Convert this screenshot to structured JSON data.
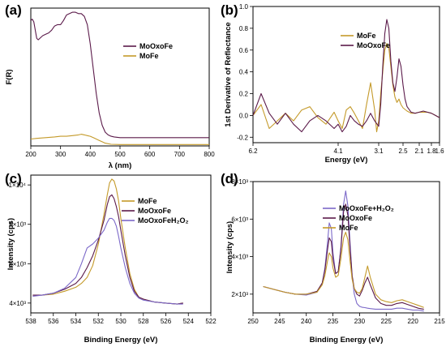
{
  "chart_data": [
    {
      "panel": "(a)",
      "type": "line",
      "xlabel": "λ (nm)",
      "ylabel": "F(R)",
      "xlim": [
        200,
        800
      ],
      "ylim": [
        0,
        1.0
      ],
      "xticks": [
        "200",
        "300",
        "400",
        "500",
        "600",
        "700",
        "800"
      ],
      "yticks": [],
      "legend_position": "right",
      "series": [
        {
          "name": "MoOxoFe",
          "color": "#5b1a4a",
          "x": [
            200,
            205,
            210,
            215,
            220,
            225,
            230,
            240,
            250,
            260,
            270,
            280,
            290,
            300,
            310,
            320,
            330,
            340,
            350,
            360,
            370,
            380,
            390,
            400,
            410,
            420,
            430,
            440,
            450,
            460,
            470,
            480,
            500,
            550,
            600,
            650,
            700,
            750,
            800
          ],
          "y": [
            0.91,
            0.92,
            0.9,
            0.84,
            0.78,
            0.77,
            0.78,
            0.8,
            0.81,
            0.82,
            0.84,
            0.87,
            0.88,
            0.88,
            0.91,
            0.95,
            0.96,
            0.97,
            0.97,
            0.96,
            0.96,
            0.94,
            0.88,
            0.74,
            0.56,
            0.38,
            0.24,
            0.15,
            0.1,
            0.08,
            0.07,
            0.065,
            0.06,
            0.06,
            0.06,
            0.06,
            0.06,
            0.06,
            0.06
          ]
        },
        {
          "name": "MoFe",
          "color": "#c49a2a",
          "x": [
            200,
            220,
            250,
            280,
            300,
            320,
            340,
            360,
            370,
            380,
            390,
            400,
            410,
            420,
            430,
            440,
            450,
            470,
            500,
            550,
            600,
            700,
            800
          ],
          "y": [
            0.05,
            0.055,
            0.06,
            0.065,
            0.07,
            0.07,
            0.075,
            0.08,
            0.085,
            0.08,
            0.075,
            0.07,
            0.06,
            0.05,
            0.04,
            0.03,
            0.02,
            0.012,
            0.01,
            0.01,
            0.01,
            0.01,
            0.01
          ]
        }
      ]
    },
    {
      "panel": "(b)",
      "type": "line",
      "xlabel": "Energy (eV)",
      "ylabel": "1st Derivative of Reflectance",
      "xlim": [
        6.2,
        1.6
      ],
      "ylim": [
        -0.25,
        1.0
      ],
      "xticks": [
        "6.2",
        "4.1",
        "3.1",
        "2.5",
        "2.1",
        "1.8",
        "1.6"
      ],
      "xtick_values": [
        6.2,
        4.1,
        3.1,
        2.5,
        2.1,
        1.8,
        1.6
      ],
      "yticks": [
        "-0.2",
        "0.0",
        "0.2",
        "0.4",
        "0.6",
        "0.8",
        "1.0"
      ],
      "ytick_values": [
        -0.2,
        0.0,
        0.2,
        0.4,
        0.6,
        0.8,
        1.0
      ],
      "legend_position": "top-right",
      "series": [
        {
          "name": "MoFe",
          "color": "#c49a2a",
          "x": [
            6.2,
            6.0,
            5.8,
            5.6,
            5.4,
            5.2,
            5.0,
            4.8,
            4.6,
            4.4,
            4.2,
            4.1,
            4.0,
            3.9,
            3.8,
            3.7,
            3.6,
            3.5,
            3.4,
            3.3,
            3.2,
            3.15,
            3.1,
            3.05,
            3.0,
            2.95,
            2.9,
            2.85,
            2.8,
            2.75,
            2.7,
            2.65,
            2.6,
            2.55,
            2.5,
            2.4,
            2.3,
            2.2,
            2.1,
            2.0,
            1.9,
            1.8,
            1.7,
            1.6
          ],
          "y": [
            0.0,
            0.1,
            -0.12,
            -0.05,
            0.02,
            -0.05,
            0.05,
            0.08,
            -0.02,
            -0.08,
            0.03,
            -0.05,
            -0.12,
            0.05,
            0.08,
            0.02,
            -0.05,
            -0.12,
            0.1,
            0.3,
            0.05,
            -0.15,
            -0.05,
            0.2,
            0.4,
            0.6,
            0.66,
            0.62,
            0.45,
            0.28,
            0.17,
            0.12,
            0.15,
            0.1,
            0.07,
            0.04,
            0.02,
            0.02,
            0.03,
            0.03,
            0.03,
            0.02,
            0.0,
            -0.02
          ]
        },
        {
          "name": "MoOxoFe",
          "color": "#5b1a4a",
          "x": [
            6.2,
            6.0,
            5.8,
            5.6,
            5.4,
            5.2,
            5.0,
            4.8,
            4.6,
            4.4,
            4.2,
            4.1,
            4.0,
            3.9,
            3.8,
            3.7,
            3.6,
            3.5,
            3.4,
            3.3,
            3.2,
            3.1,
            3.05,
            3.0,
            2.95,
            2.9,
            2.85,
            2.8,
            2.75,
            2.7,
            2.65,
            2.6,
            2.55,
            2.5,
            2.45,
            2.4,
            2.3,
            2.2,
            2.1,
            2.0,
            1.9,
            1.8,
            1.7,
            1.6
          ],
          "y": [
            0.0,
            0.2,
            0.02,
            -0.08,
            0.02,
            -0.08,
            -0.15,
            -0.05,
            0.0,
            -0.05,
            -0.12,
            -0.08,
            -0.15,
            -0.1,
            0.0,
            -0.05,
            -0.08,
            -0.1,
            -0.05,
            0.02,
            -0.05,
            -0.1,
            0.1,
            0.45,
            0.75,
            0.88,
            0.8,
            0.5,
            0.3,
            0.22,
            0.35,
            0.52,
            0.45,
            0.28,
            0.15,
            0.08,
            0.03,
            0.02,
            0.03,
            0.04,
            0.03,
            0.02,
            0.0,
            -0.02
          ]
        }
      ]
    },
    {
      "panel": "(c)",
      "type": "line",
      "xlabel": "Binding Energy (eV)",
      "ylabel": "Intensity (cps)",
      "xlim": [
        538,
        522
      ],
      "ylim": [
        3500,
        10500
      ],
      "xticks": [
        "538",
        "536",
        "534",
        "532",
        "530",
        "528",
        "526",
        "524",
        "522"
      ],
      "xtick_values": [
        538,
        536,
        534,
        532,
        530,
        528,
        526,
        524,
        522
      ],
      "yticks": [
        "4×10³",
        "6×10³",
        "8×10³",
        "1×10⁴"
      ],
      "ytick_values": [
        4000,
        6000,
        8000,
        10000
      ],
      "legend_position": "top-right",
      "series": [
        {
          "name": "MoFe",
          "color": "#c49a2a",
          "x": [
            537.8,
            537,
            536,
            535,
            534,
            533.5,
            533,
            532.5,
            532,
            531.5,
            531.2,
            531,
            530.8,
            530.6,
            530.4,
            530.2,
            530,
            529.6,
            529.2,
            528.8,
            528.4,
            528,
            527,
            526,
            525,
            524.5
          ],
          "y": [
            4400,
            4400,
            4450,
            4600,
            4800,
            5000,
            5300,
            5900,
            7000,
            8500,
            9500,
            10100,
            10300,
            10200,
            9800,
            9200,
            8300,
            6800,
            5500,
            4700,
            4300,
            4200,
            4050,
            4000,
            3950,
            4000
          ]
        },
        {
          "name": "MoOxoFe",
          "color": "#5b1a4a",
          "x": [
            537.8,
            537,
            536,
            535,
            534,
            533.5,
            533,
            532.5,
            532,
            531.5,
            531.2,
            531,
            530.8,
            530.6,
            530.4,
            530.2,
            530,
            529.6,
            529.2,
            528.8,
            528.4,
            528,
            527,
            526,
            525,
            524.5
          ],
          "y": [
            4400,
            4400,
            4500,
            4700,
            5000,
            5300,
            5800,
            6400,
            7200,
            8200,
            9000,
            9400,
            9500,
            9300,
            8900,
            8400,
            7700,
            6400,
            5300,
            4600,
            4300,
            4200,
            4050,
            4000,
            3950,
            4000
          ]
        },
        {
          "name": "MoOxoFeH₂O₂",
          "color": "#7b68c8",
          "x": [
            537.8,
            537,
            536,
            535,
            534,
            533.5,
            533,
            532.5,
            532,
            531.5,
            531.2,
            531,
            530.8,
            530.6,
            530.4,
            530.2,
            530,
            529.6,
            529.2,
            528.8,
            528.4,
            528,
            527,
            526,
            525,
            524.5
          ],
          "y": [
            4350,
            4400,
            4500,
            4750,
            5300,
            6000,
            6800,
            7000,
            7300,
            7700,
            8100,
            8300,
            8300,
            8200,
            7900,
            7400,
            6800,
            5800,
            5000,
            4500,
            4250,
            4150,
            4050,
            4000,
            3950,
            3950
          ]
        }
      ]
    },
    {
      "panel": "(d)",
      "type": "line",
      "xlabel": "Binding Energy (eV)",
      "ylabel": "Intensity (cps)",
      "xlim": [
        250,
        215
      ],
      "ylim": [
        1000,
        8000
      ],
      "xticks": [
        "250",
        "245",
        "240",
        "235",
        "230",
        "225",
        "220",
        "215"
      ],
      "xtick_values": [
        250,
        245,
        240,
        235,
        230,
        225,
        220,
        215
      ],
      "yticks": [
        "2×10³",
        "4×10³",
        "6×10³",
        "8×10³"
      ],
      "ytick_values": [
        2000,
        4000,
        6000,
        8000
      ],
      "legend_position": "top-right",
      "series": [
        {
          "name": "MoOxoFe+H₂O₂",
          "color": "#7b68c8",
          "x": [
            248,
            246,
            244,
            242,
            240,
            238,
            237,
            236.5,
            236,
            235.7,
            235.3,
            235,
            234.5,
            234,
            233.5,
            233,
            232.6,
            232.2,
            231.8,
            231.4,
            231,
            230.5,
            230,
            229.5,
            229,
            228.5,
            228,
            227,
            226,
            225,
            224,
            223,
            222,
            221,
            220,
            219,
            218
          ],
          "y": [
            2400,
            2250,
            2100,
            2000,
            1950,
            2100,
            2600,
            3400,
            4800,
            5800,
            5500,
            4200,
            3100,
            3200,
            4500,
            6800,
            7500,
            6700,
            4800,
            3000,
            2000,
            1500,
            1350,
            1300,
            1280,
            1250,
            1230,
            1200,
            1200,
            1200,
            1200,
            1250,
            1250,
            1200,
            1150,
            1150,
            1100
          ]
        },
        {
          "name": "MoOxoFe",
          "color": "#5b1a4a",
          "x": [
            248,
            246,
            244,
            242,
            240,
            238,
            237,
            236.5,
            236,
            235.7,
            235.3,
            235,
            234.5,
            234,
            233.5,
            233,
            232.6,
            232.2,
            231.8,
            231.4,
            231,
            230.5,
            230,
            229.5,
            229,
            228.5,
            228,
            227,
            226,
            225,
            224,
            223,
            222,
            221,
            220,
            219,
            218
          ],
          "y": [
            2400,
            2250,
            2100,
            2000,
            2000,
            2150,
            2600,
            3300,
            4400,
            5000,
            4800,
            3900,
            3100,
            3200,
            4400,
            6400,
            6800,
            6200,
            4500,
            3000,
            2300,
            2000,
            1900,
            2200,
            2600,
            2900,
            2500,
            1800,
            1500,
            1400,
            1400,
            1500,
            1550,
            1450,
            1350,
            1250,
            1200
          ]
        },
        {
          "name": "MoFe",
          "color": "#c49a2a",
          "x": [
            248,
            246,
            244,
            242,
            240,
            238,
            237,
            236.5,
            236,
            235.7,
            235.3,
            235,
            234.5,
            234,
            233.5,
            233,
            232.6,
            232.2,
            231.8,
            231.4,
            231,
            230.5,
            230,
            229.5,
            229,
            228.5,
            228,
            227,
            226,
            225,
            224,
            223,
            222,
            221,
            220,
            219,
            218
          ],
          "y": [
            2400,
            2250,
            2100,
            2000,
            2000,
            2100,
            2500,
            3000,
            3800,
            4200,
            4000,
            3400,
            2900,
            3000,
            3900,
            5000,
            5300,
            4900,
            3800,
            2800,
            2300,
            2100,
            2050,
            2300,
            2900,
            3500,
            2900,
            2000,
            1700,
            1600,
            1550,
            1650,
            1700,
            1600,
            1500,
            1400,
            1300
          ]
        }
      ]
    }
  ]
}
